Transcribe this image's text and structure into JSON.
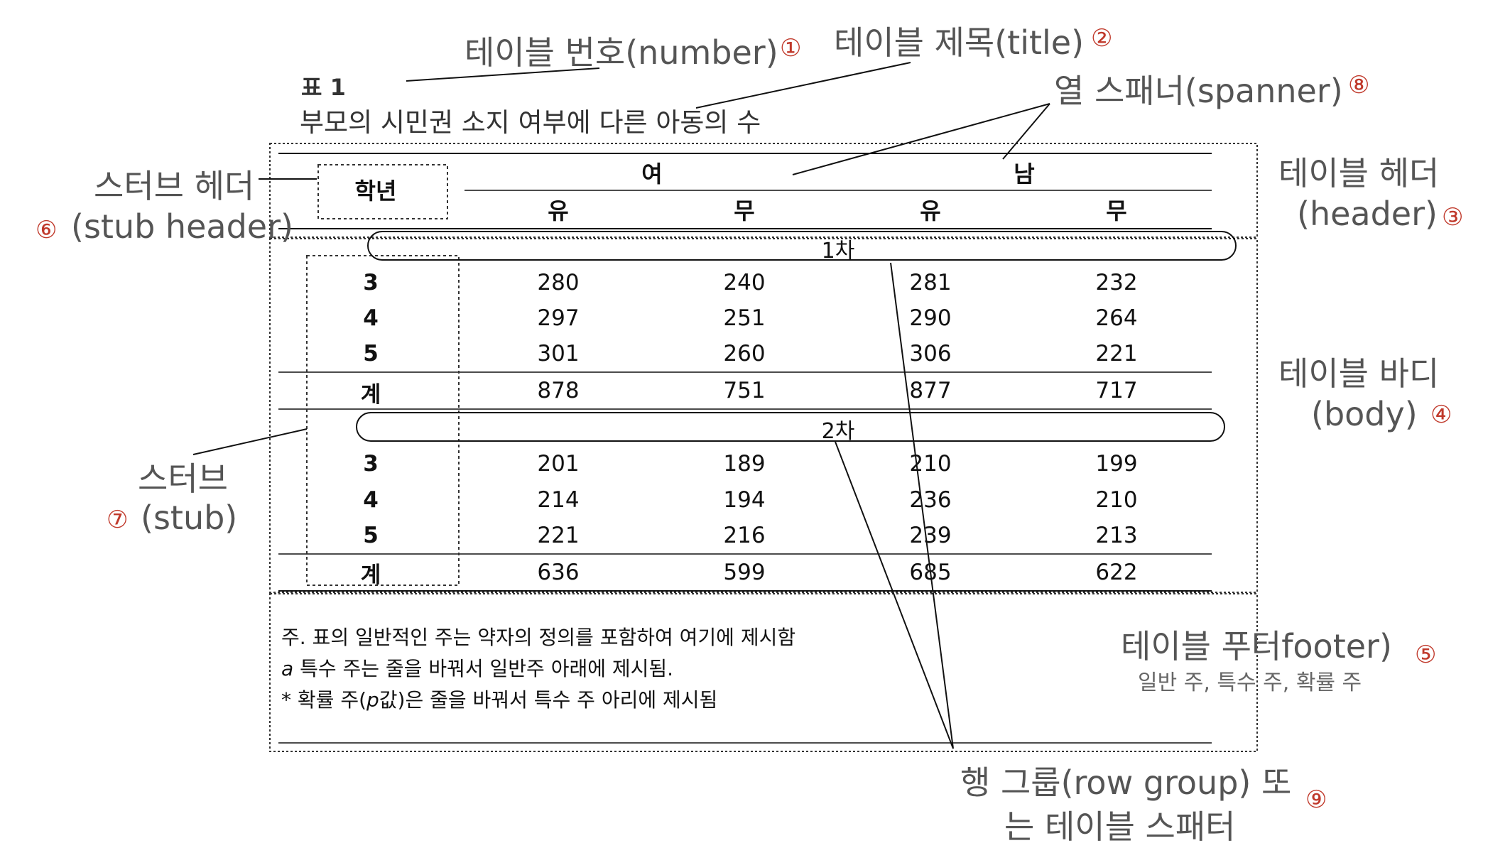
{
  "annotations": {
    "number": {
      "label": "테이블 번호(number)",
      "marker": "①"
    },
    "title": {
      "label": "테이블 제목(title)",
      "marker": "②"
    },
    "spanner": {
      "label": "열 스패너(spanner)",
      "marker": "⑧"
    },
    "header": {
      "line1": "테이블 헤더",
      "line2": "(header)",
      "marker": "③"
    },
    "stub_header": {
      "line1": "스터브 헤더",
      "line2": "(stub header)",
      "marker": "⑥"
    },
    "body": {
      "line1": "테이블 바디",
      "line2": "(body)",
      "marker": "④"
    },
    "stub": {
      "line1": "스터브",
      "line2": "(stub)",
      "marker": "⑦"
    },
    "footer": {
      "line1": "테이블 푸터footer)",
      "sub": "일반 주, 특수 주, 확률 주",
      "marker": "⑤"
    },
    "row_group": {
      "line1": "행 그룹(row group) 또",
      "line2": "는 테이블 스패터",
      "marker": "⑨"
    }
  },
  "table": {
    "number": "표 1",
    "title": "부모의 시민권 소지 여부에 다른 아동의 수",
    "stub_header": "학년",
    "spanners": [
      "여",
      "남"
    ],
    "columns": [
      "유",
      "무",
      "유",
      "무"
    ],
    "groups": [
      {
        "label": "1차",
        "rows": [
          {
            "stub": "3",
            "cells": [
              "280",
              "240",
              "281",
              "232"
            ]
          },
          {
            "stub": "4",
            "cells": [
              "297",
              "251",
              "290",
              "264"
            ]
          },
          {
            "stub": "5",
            "cells": [
              "301",
              "260",
              "306",
              "221"
            ]
          }
        ],
        "total": {
          "stub": "계",
          "cells": [
            "878",
            "751",
            "877",
            "717"
          ]
        }
      },
      {
        "label": "2차",
        "rows": [
          {
            "stub": "3",
            "cells": [
              "201",
              "189",
              "210",
              "199"
            ]
          },
          {
            "stub": "4",
            "cells": [
              "214",
              "194",
              "236",
              "210"
            ]
          },
          {
            "stub": "5",
            "cells": [
              "221",
              "216",
              "239",
              "213"
            ]
          }
        ],
        "total": {
          "stub": "계",
          "cells": [
            "636",
            "599",
            "685",
            "622"
          ]
        }
      }
    ],
    "notes": {
      "general": "주. 표의 일반적인 주는 약자의 정의를 포함하여 여기에 제시함",
      "specific_mark": "a",
      "specific": " 특수 주는 줄을 바꿔서 일반주 아래에 제시됨.",
      "probability_prefix": "* 확률 주(",
      "probability_p": "p",
      "probability_suffix": "값)은 줄을 바꿔서 특수 주 아리에 제시됨"
    }
  },
  "colors": {
    "marker": "#c0392b",
    "label": "#555555",
    "line": "#111111"
  }
}
